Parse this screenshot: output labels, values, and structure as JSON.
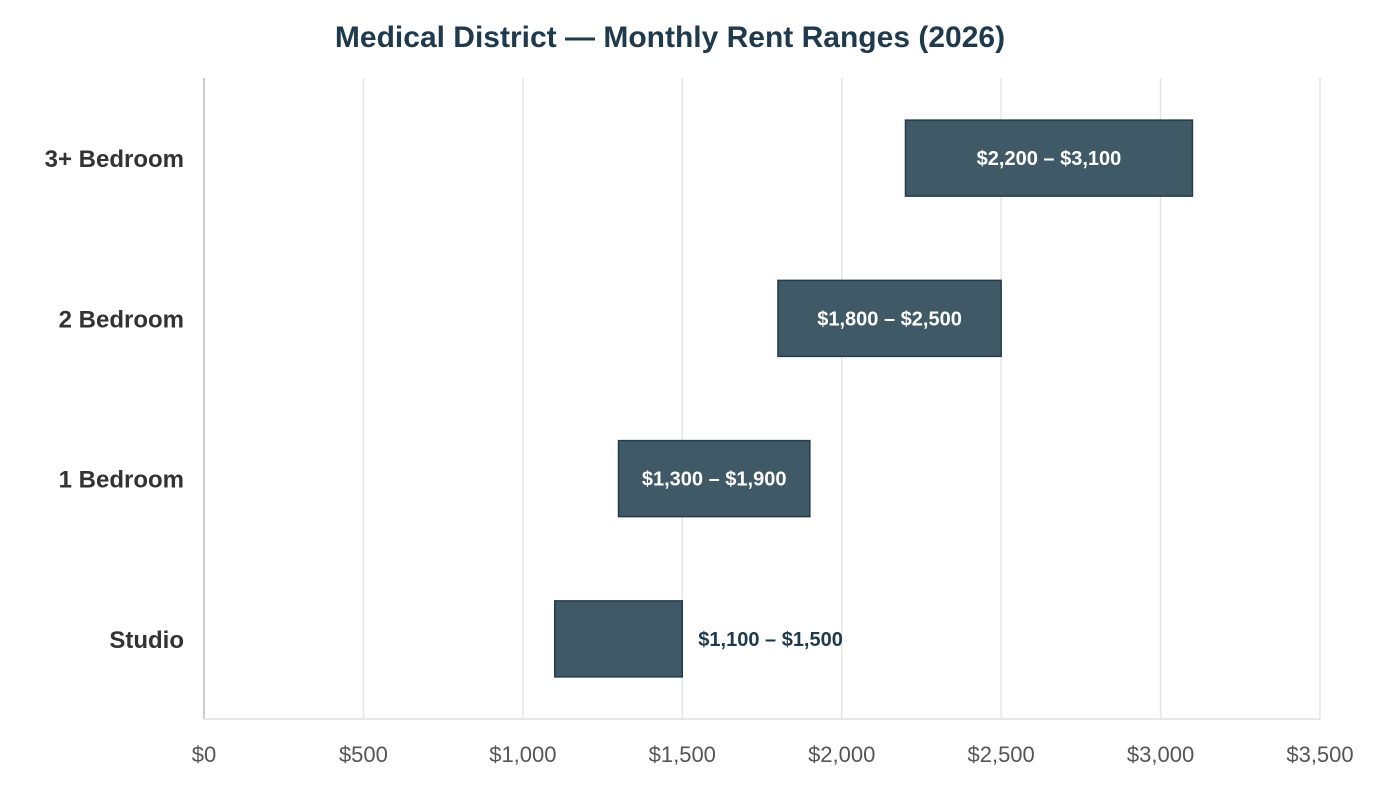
{
  "chart_data": {
    "type": "bar",
    "orientation": "horizontal-range",
    "title": "Medical District — Monthly Rent Ranges (2026)",
    "xlabel": "",
    "ylabel": "",
    "xlim": [
      0,
      3500
    ],
    "x_ticks": [
      0,
      500,
      1000,
      1500,
      2000,
      2500,
      3000,
      3500
    ],
    "x_tick_labels": [
      "$0",
      "$500",
      "$1,000",
      "$1,500",
      "$2,000",
      "$2,500",
      "$3,000",
      "$3,500"
    ],
    "categories": [
      "3+ Bedroom",
      "2 Bedroom",
      "1 Bedroom",
      "Studio"
    ],
    "ranges": [
      {
        "category": "3+ Bedroom",
        "low": 2200,
        "high": 3100,
        "label": "$2,200 – $3,100",
        "label_position": "inside"
      },
      {
        "category": "2 Bedroom",
        "low": 1800,
        "high": 2500,
        "label": "$1,800 – $2,500",
        "label_position": "inside"
      },
      {
        "category": "1 Bedroom",
        "low": 1300,
        "high": 1900,
        "label": "$1,300 – $1,900",
        "label_position": "inside"
      },
      {
        "category": "Studio",
        "low": 1100,
        "high": 1500,
        "label": "$1,100 – $1,500",
        "label_position": "outside"
      }
    ],
    "grid": "vertical",
    "legend": "none",
    "colors": {
      "bar_fill": "#3f5966",
      "bar_stroke": "#223c4a",
      "title": "#1f3a4c"
    }
  }
}
